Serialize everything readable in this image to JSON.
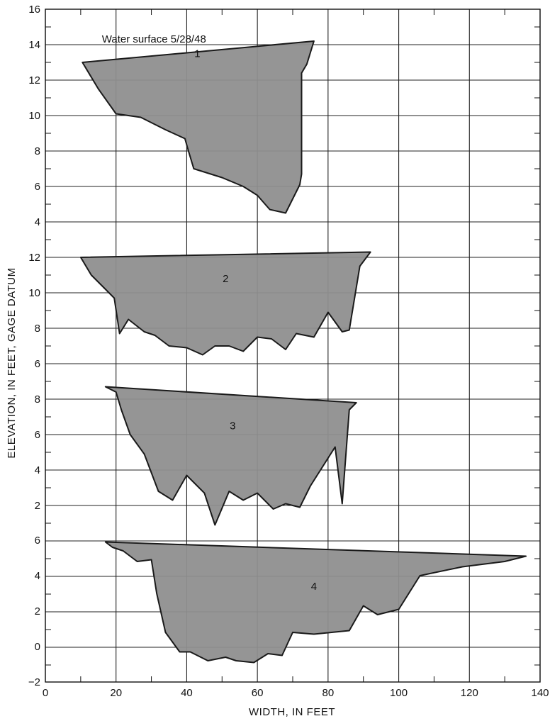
{
  "chart_data": {
    "type": "area",
    "title": "",
    "xlabel": "WIDTH, IN FEET",
    "ylabel": "ELEVATION, IN FEET, GAGE DATUM",
    "xlim": [
      0,
      140
    ],
    "x_ticks": [
      0,
      20,
      40,
      60,
      80,
      100,
      120,
      140
    ],
    "grid": true,
    "fill_color": "#8f8f8f",
    "line_color": "#1a1a1a",
    "annotations": [
      {
        "text": "Water surface 5/28/48",
        "x": 16,
        "y": 14.2,
        "section": "1"
      }
    ],
    "series": [
      {
        "name": "1",
        "y_ticks": [
          4,
          6,
          8,
          10,
          12,
          14,
          16
        ],
        "ylim": [
          4,
          16
        ],
        "label_position": [
          43,
          13.3
        ],
        "water_surface": [
          [
            10.5,
            13.0
          ],
          [
            76,
            14.2
          ]
        ],
        "profile": [
          [
            10.5,
            13.0
          ],
          [
            15,
            11.5
          ],
          [
            20,
            10.1
          ],
          [
            27,
            9.9
          ],
          [
            34,
            9.2
          ],
          [
            39.5,
            8.7
          ],
          [
            40.5,
            8.0
          ],
          [
            42,
            7.0
          ],
          [
            50,
            6.5
          ],
          [
            56,
            6.0
          ],
          [
            60,
            5.5
          ],
          [
            63.5,
            4.7
          ],
          [
            68,
            4.5
          ],
          [
            70,
            5.3
          ],
          [
            72,
            6.1
          ],
          [
            72.5,
            6.7
          ],
          [
            72.5,
            12.4
          ],
          [
            74,
            12.9
          ],
          [
            76,
            14.2
          ]
        ]
      },
      {
        "name": "2",
        "y_ticks": [
          6,
          8,
          10,
          12
        ],
        "ylim": [
          6,
          12
        ],
        "label_position": [
          51,
          10.6
        ],
        "water_surface": [
          [
            10,
            12.0
          ],
          [
            92,
            12.3
          ]
        ],
        "profile": [
          [
            10,
            12.0
          ],
          [
            13,
            11.0
          ],
          [
            16,
            10.4
          ],
          [
            19.5,
            9.7
          ],
          [
            21,
            7.7
          ],
          [
            23.5,
            8.5
          ],
          [
            28,
            7.8
          ],
          [
            31,
            7.6
          ],
          [
            35,
            7.0
          ],
          [
            40,
            6.9
          ],
          [
            44.5,
            6.5
          ],
          [
            48,
            7.0
          ],
          [
            52,
            7.0
          ],
          [
            56,
            6.7
          ],
          [
            60,
            7.5
          ],
          [
            64,
            7.4
          ],
          [
            68,
            6.8
          ],
          [
            71,
            7.7
          ],
          [
            76,
            7.5
          ],
          [
            80,
            8.9
          ],
          [
            84,
            7.8
          ],
          [
            86,
            7.9
          ],
          [
            89,
            11.5
          ],
          [
            92,
            12.3
          ]
        ]
      },
      {
        "name": "3",
        "y_ticks": [
          2,
          4,
          6,
          8
        ],
        "ylim": [
          0,
          8.8
        ],
        "label_position": [
          53,
          6.3
        ],
        "water_surface": [
          [
            17,
            8.7
          ],
          [
            88,
            7.8
          ]
        ],
        "profile": [
          [
            17,
            8.7
          ],
          [
            20,
            8.4
          ],
          [
            21.5,
            7.4
          ],
          [
            24,
            6.0
          ],
          [
            28,
            4.9
          ],
          [
            32,
            2.8
          ],
          [
            36,
            2.3
          ],
          [
            40,
            3.7
          ],
          [
            45,
            2.7
          ],
          [
            48,
            0.9
          ],
          [
            52,
            2.8
          ],
          [
            56,
            2.3
          ],
          [
            60,
            2.7
          ],
          [
            64.5,
            1.8
          ],
          [
            68,
            2.1
          ],
          [
            72,
            1.9
          ],
          [
            75,
            3.1
          ],
          [
            82,
            5.3
          ],
          [
            84,
            2.1
          ],
          [
            86,
            7.4
          ],
          [
            88,
            7.8
          ]
        ]
      },
      {
        "name": "4",
        "y_ticks": [
          -2,
          0,
          2,
          4,
          6
        ],
        "ylim": [
          -2,
          6
        ],
        "label_position": [
          76,
          3.2
        ],
        "water_surface": [
          [
            17,
            5.9
          ],
          [
            136,
            5.1
          ]
        ],
        "profile": [
          [
            17,
            5.9
          ],
          [
            19,
            5.6
          ],
          [
            22,
            5.4
          ],
          [
            26,
            4.8
          ],
          [
            30,
            4.9
          ],
          [
            31.5,
            3.0
          ],
          [
            34,
            0.8
          ],
          [
            38,
            -0.3
          ],
          [
            41,
            -0.3
          ],
          [
            46,
            -0.8
          ],
          [
            51,
            -0.6
          ],
          [
            54,
            -0.8
          ],
          [
            59,
            -0.9
          ],
          [
            63,
            -0.4
          ],
          [
            67,
            -0.5
          ],
          [
            70,
            0.8
          ],
          [
            76,
            0.7
          ],
          [
            86,
            0.9
          ],
          [
            90,
            2.3
          ],
          [
            94,
            1.8
          ],
          [
            100,
            2.1
          ],
          [
            106,
            4.0
          ],
          [
            118,
            4.5
          ],
          [
            130,
            4.8
          ],
          [
            136,
            5.1
          ]
        ]
      }
    ]
  }
}
